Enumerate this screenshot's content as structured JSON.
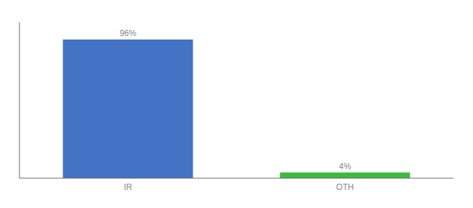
{
  "chart_data": {
    "type": "bar",
    "categories": [
      "IR",
      "OTH"
    ],
    "values": [
      96,
      4
    ],
    "value_labels": [
      "96%",
      "4%"
    ],
    "colors": [
      "#4472c4",
      "#3dba3d"
    ],
    "ylim": [
      0,
      108
    ],
    "data_labels": true,
    "tick_labels": "x"
  }
}
